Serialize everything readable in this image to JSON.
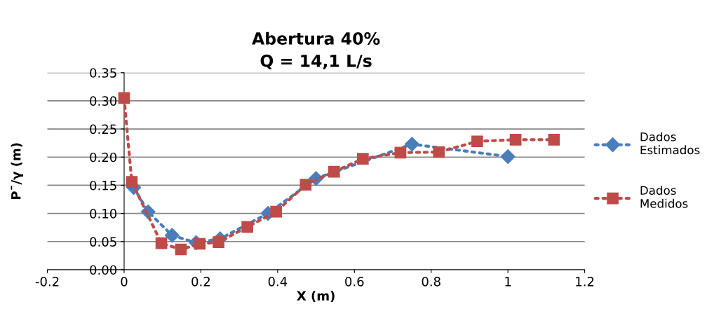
{
  "chart_data": {
    "type": "line",
    "title": "Abertura 40%\nQ = 14,1 L/s",
    "xlabel": "X (m)",
    "ylabel": "P¯/γ (m)",
    "xlim": [
      -0.2,
      1.2
    ],
    "xticks": [
      -0.2,
      0,
      0.2,
      0.4,
      0.6,
      0.8,
      1,
      1.2
    ],
    "ylim": [
      0,
      0.35
    ],
    "yticks": [
      {
        "value": 0,
        "label": "0.00"
      },
      {
        "value": 0.05,
        "label": "0.05"
      },
      {
        "value": 0.1,
        "label": "0.10"
      },
      {
        "value": 0.15,
        "label": "0.15"
      },
      {
        "value": 0.2,
        "label": "0.20"
      },
      {
        "value": 0.25,
        "label": "0.25"
      },
      {
        "value": 0.3,
        "label": "0.30"
      },
      {
        "value": 0.35,
        "label": "0.35"
      }
    ],
    "grid": "y",
    "legend": "right",
    "line_style": "dotted",
    "series": [
      {
        "name": "Dados\nEstimados",
        "color": "#4a7ebb",
        "marker": "diamond",
        "x": [
          0.025,
          0.0625,
          0.125,
          0.1875,
          0.25,
          0.375,
          0.5,
          0.75,
          1.0
        ],
        "values": [
          0.146,
          0.103,
          0.061,
          0.048,
          0.055,
          0.1,
          0.162,
          0.223,
          0.201
        ]
      },
      {
        "name": "Dados\nMedidos",
        "color": "#be4b48",
        "marker": "square",
        "x": [
          0,
          0.02,
          0.097,
          0.148,
          0.197,
          0.246,
          0.321,
          0.396,
          0.473,
          0.547,
          0.622,
          0.72,
          0.82,
          0.92,
          1.02,
          1.12
        ],
        "values": [
          0.305,
          0.156,
          0.047,
          0.036,
          0.046,
          0.049,
          0.076,
          0.103,
          0.151,
          0.174,
          0.197,
          0.208,
          0.209,
          0.228,
          0.231,
          0.231
        ]
      }
    ]
  }
}
